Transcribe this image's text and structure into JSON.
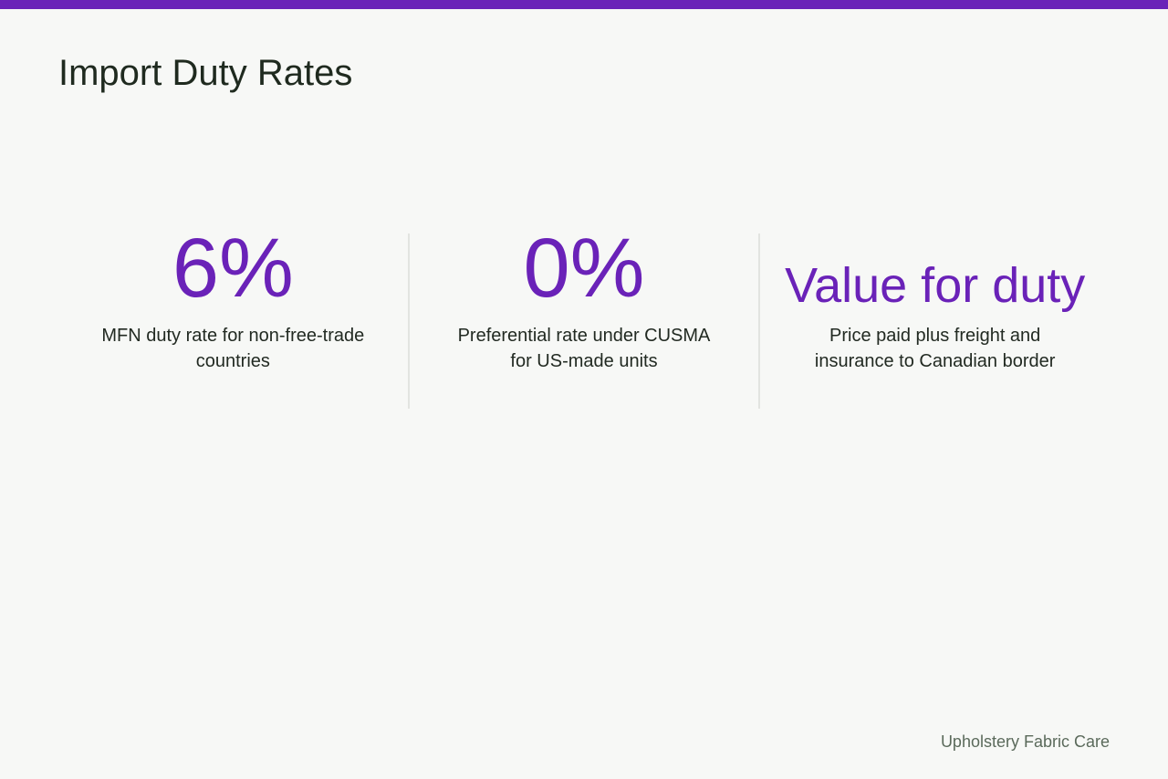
{
  "colors": {
    "accent": "#6a22b8",
    "background": "#f7f8f6",
    "title_text": "#1f2a1f",
    "body_text": "#222a22",
    "footer_text": "#5b6a5b",
    "divider": "#e2e4e0"
  },
  "slide": {
    "title": "Import Duty Rates",
    "footer": "Upholstery Fabric Care"
  },
  "stats": [
    {
      "value": "6%",
      "description": "MFN duty rate for non-free-trade countries"
    },
    {
      "value": "0%",
      "description": "Preferential rate under CUSMA for US-made units"
    },
    {
      "value": "Value for duty",
      "description": "Price paid plus freight and insurance to Canadian border"
    }
  ]
}
